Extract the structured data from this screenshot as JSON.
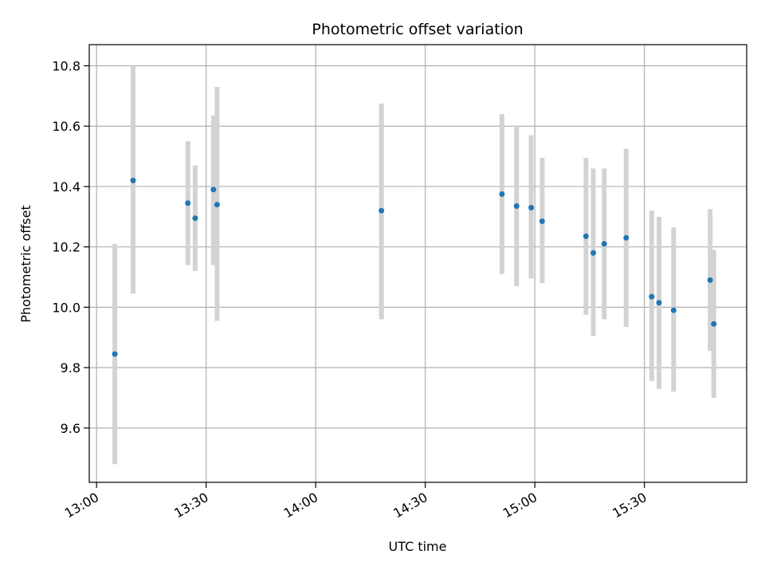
{
  "chart_data": {
    "type": "scatter",
    "title": "Photometric offset variation",
    "xlabel": "UTC time",
    "ylabel": "Photometric offset",
    "x_ticks": [
      "13:00",
      "13:30",
      "14:00",
      "14:30",
      "15:00",
      "15:30"
    ],
    "y_ticks": [
      9.6,
      9.8,
      10.0,
      10.2,
      10.4,
      10.6,
      10.8
    ],
    "xlim": [
      "12:58",
      "15:58"
    ],
    "ylim": [
      9.42,
      10.87
    ],
    "grid": true,
    "marker_color": "#1f77b4",
    "errorbar_color": "#d3d3d3",
    "points": [
      {
        "x": "13:05",
        "y": 9.845,
        "err_low": 9.48,
        "err_high": 10.21
      },
      {
        "x": "13:10",
        "y": 10.42,
        "err_low": 10.045,
        "err_high": 10.8
      },
      {
        "x": "13:25",
        "y": 10.345,
        "err_low": 10.14,
        "err_high": 10.55
      },
      {
        "x": "13:27",
        "y": 10.295,
        "err_low": 10.12,
        "err_high": 10.47
      },
      {
        "x": "13:32",
        "y": 10.39,
        "err_low": 10.14,
        "err_high": 10.635
      },
      {
        "x": "13:33",
        "y": 10.34,
        "err_low": 9.955,
        "err_high": 10.73
      },
      {
        "x": "14:18",
        "y": 10.32,
        "err_low": 9.96,
        "err_high": 10.675
      },
      {
        "x": "14:51",
        "y": 10.375,
        "err_low": 10.11,
        "err_high": 10.64
      },
      {
        "x": "14:55",
        "y": 10.335,
        "err_low": 10.07,
        "err_high": 10.6
      },
      {
        "x": "14:59",
        "y": 10.33,
        "err_low": 10.095,
        "err_high": 10.57
      },
      {
        "x": "15:02",
        "y": 10.285,
        "err_low": 10.08,
        "err_high": 10.495
      },
      {
        "x": "15:14",
        "y": 10.235,
        "err_low": 9.975,
        "err_high": 10.495
      },
      {
        "x": "15:16",
        "y": 10.18,
        "err_low": 9.905,
        "err_high": 10.46
      },
      {
        "x": "15:19",
        "y": 10.21,
        "err_low": 9.96,
        "err_high": 10.46
      },
      {
        "x": "15:25",
        "y": 10.23,
        "err_low": 9.935,
        "err_high": 10.525
      },
      {
        "x": "15:32",
        "y": 10.035,
        "err_low": 9.755,
        "err_high": 10.32
      },
      {
        "x": "15:34",
        "y": 10.015,
        "err_low": 9.73,
        "err_high": 10.3
      },
      {
        "x": "15:38",
        "y": 9.99,
        "err_low": 9.72,
        "err_high": 10.265
      },
      {
        "x": "15:48",
        "y": 10.09,
        "err_low": 9.855,
        "err_high": 10.325
      },
      {
        "x": "15:49",
        "y": 9.945,
        "err_low": 9.7,
        "err_high": 10.19
      }
    ]
  }
}
